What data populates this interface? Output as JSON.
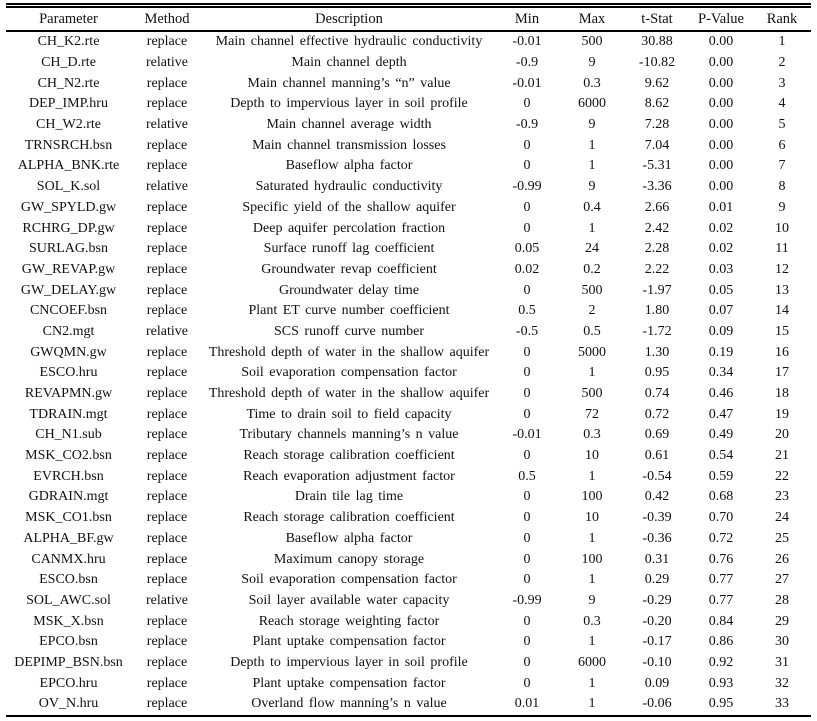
{
  "table": {
    "columns": [
      "Parameter",
      "Method",
      "Description",
      "Min",
      "Max",
      "t-Stat",
      "P-Value",
      "Rank"
    ],
    "rows": [
      [
        "CH_K2.rte",
        "replace",
        "Main channel effective hydraulic conductivity",
        "-0.01",
        "500",
        "30.88",
        "0.00",
        "1"
      ],
      [
        "CH_D.rte",
        "relative",
        "Main channel depth",
        "-0.9",
        "9",
        "-10.82",
        "0.00",
        "2"
      ],
      [
        "CH_N2.rte",
        "replace",
        "Main channel manning’s “n” value",
        "-0.01",
        "0.3",
        "9.62",
        "0.00",
        "3"
      ],
      [
        "DEP_IMP.hru",
        "replace",
        "Depth to impervious layer in soil profile",
        "0",
        "6000",
        "8.62",
        "0.00",
        "4"
      ],
      [
        "CH_W2.rte",
        "relative",
        "Main channel average width",
        "-0.9",
        "9",
        "7.28",
        "0.00",
        "5"
      ],
      [
        "TRNSRCH.bsn",
        "replace",
        "Main channel transmission losses",
        "0",
        "1",
        "7.04",
        "0.00",
        "6"
      ],
      [
        "ALPHA_BNK.rte",
        "replace",
        "Baseflow alpha factor",
        "0",
        "1",
        "-5.31",
        "0.00",
        "7"
      ],
      [
        "SOL_K.sol",
        "relative",
        "Saturated hydraulic conductivity",
        "-0.99",
        "9",
        "-3.36",
        "0.00",
        "8"
      ],
      [
        "GW_SPYLD.gw",
        "replace",
        "Specific yield of the shallow aquifer",
        "0",
        "0.4",
        "2.66",
        "0.01",
        "9"
      ],
      [
        "RCHRG_DP.gw",
        "replace",
        "Deep aquifer percolation fraction",
        "0",
        "1",
        "2.42",
        "0.02",
        "10"
      ],
      [
        "SURLAG.bsn",
        "replace",
        "Surface runoff lag coefficient",
        "0.05",
        "24",
        "2.28",
        "0.02",
        "11"
      ],
      [
        "GW_REVAP.gw",
        "replace",
        "Groundwater revap coefficient",
        "0.02",
        "0.2",
        "2.22",
        "0.03",
        "12"
      ],
      [
        "GW_DELAY.gw",
        "replace",
        "Groundwater delay time",
        "0",
        "500",
        "-1.97",
        "0.05",
        "13"
      ],
      [
        "CNCOEF.bsn",
        "replace",
        "Plant ET curve number coefficient",
        "0.5",
        "2",
        "1.80",
        "0.07",
        "14"
      ],
      [
        "CN2.mgt",
        "relative",
        "SCS runoff curve number",
        "-0.5",
        "0.5",
        "-1.72",
        "0.09",
        "15"
      ],
      [
        "GWQMN.gw",
        "replace",
        "Threshold depth of water in the shallow aquifer",
        "0",
        "5000",
        "1.30",
        "0.19",
        "16"
      ],
      [
        "ESCO.hru",
        "replace",
        "Soil evaporation compensation factor",
        "0",
        "1",
        "0.95",
        "0.34",
        "17"
      ],
      [
        "REVAPMN.gw",
        "replace",
        "Threshold depth of water in the shallow aquifer",
        "0",
        "500",
        "0.74",
        "0.46",
        "18"
      ],
      [
        "TDRAIN.mgt",
        "replace",
        "Time to drain soil to field capacity",
        "0",
        "72",
        "0.72",
        "0.47",
        "19"
      ],
      [
        "CH_N1.sub",
        "replace",
        "Tributary channels manning’s n value",
        "-0.01",
        "0.3",
        "0.69",
        "0.49",
        "20"
      ],
      [
        "MSK_CO2.bsn",
        "replace",
        "Reach storage calibration coefficient",
        "0",
        "10",
        "0.61",
        "0.54",
        "21"
      ],
      [
        "EVRCH.bsn",
        "replace",
        "Reach evaporation adjustment factor",
        "0.5",
        "1",
        "-0.54",
        "0.59",
        "22"
      ],
      [
        "GDRAIN.mgt",
        "replace",
        "Drain tile lag time",
        "0",
        "100",
        "0.42",
        "0.68",
        "23"
      ],
      [
        "MSK_CO1.bsn",
        "replace",
        "Reach storage calibration coefficient",
        "0",
        "10",
        "-0.39",
        "0.70",
        "24"
      ],
      [
        "ALPHA_BF.gw",
        "replace",
        "Baseflow alpha factor",
        "0",
        "1",
        "-0.36",
        "0.72",
        "25"
      ],
      [
        "CANMX.hru",
        "replace",
        "Maximum canopy storage",
        "0",
        "100",
        "0.31",
        "0.76",
        "26"
      ],
      [
        "ESCO.bsn",
        "replace",
        "Soil evaporation compensation factor",
        "0",
        "1",
        "0.29",
        "0.77",
        "27"
      ],
      [
        "SOL_AWC.sol",
        "relative",
        "Soil layer available water capacity",
        "-0.99",
        "9",
        "-0.29",
        "0.77",
        "28"
      ],
      [
        "MSK_X.bsn",
        "replace",
        "Reach storage weighting factor",
        "0",
        "0.3",
        "-0.20",
        "0.84",
        "29"
      ],
      [
        "EPCO.bsn",
        "replace",
        "Plant uptake compensation factor",
        "0",
        "1",
        "-0.17",
        "0.86",
        "30"
      ],
      [
        "DEPIMP_BSN.bsn",
        "replace",
        "Depth to impervious layer in soil profile",
        "0",
        "6000",
        "-0.10",
        "0.92",
        "31"
      ],
      [
        "EPCO.hru",
        "replace",
        "Plant uptake compensation factor",
        "0",
        "1",
        "0.09",
        "0.93",
        "32"
      ],
      [
        "OV_N.hru",
        "replace",
        "Overland flow manning’s n value",
        "0.01",
        "1",
        "-0.06",
        "0.95",
        "33"
      ]
    ],
    "text_color": "#111111",
    "rule_color": "#000000"
  }
}
